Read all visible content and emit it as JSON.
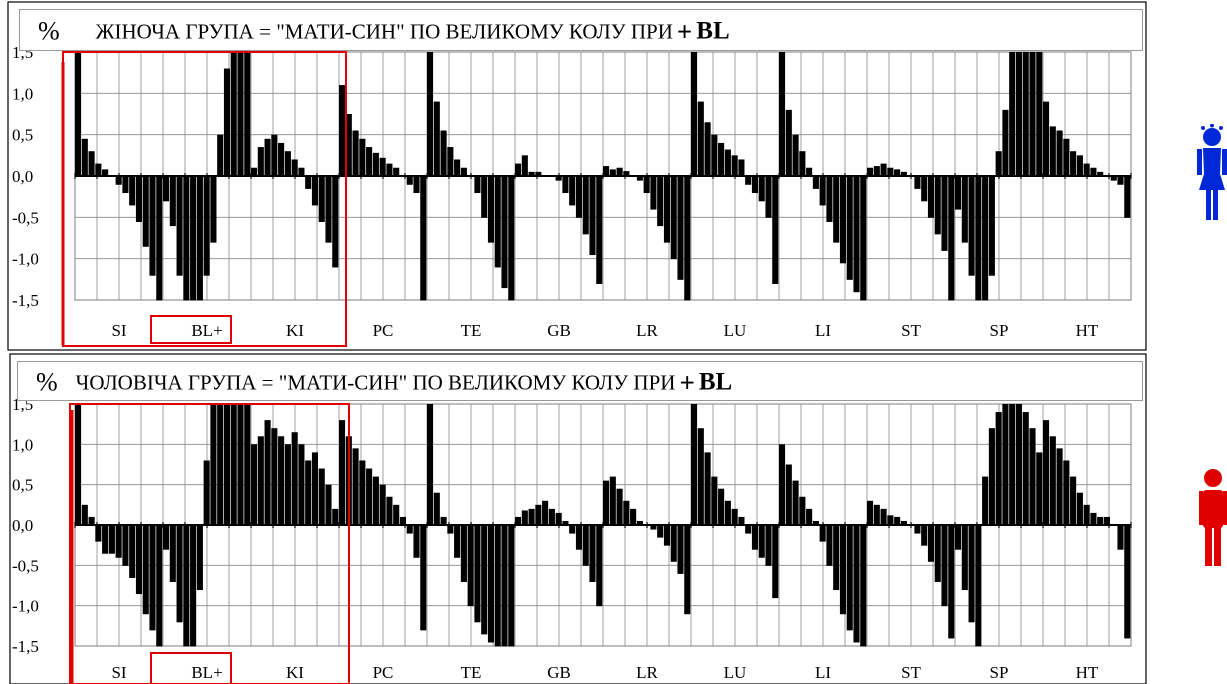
{
  "palette": {
    "bars": "#000000",
    "highlight": "#e00000",
    "female": "#0028d8",
    "male": "#e00000"
  },
  "female_title": {
    "percent": "%",
    "text": "ЖІНОЧА ГРУПА  = \"МАТИ-СИН\" ПО ВЕЛИКОМУ КОЛУ ПРИ",
    "plus": "+",
    "bl": "BL"
  },
  "male_title": {
    "percent": "%",
    "text": "ЧОЛОВІЧА ГРУПА  = \"МАТИ-СИН\" ПО ВЕЛИКОМУ КОЛУ  ПРИ",
    "plus": "+",
    "bl": "BL"
  },
  "icons": {
    "female": "woman-icon",
    "male": "man-icon"
  },
  "chart_data": [
    {
      "type": "bar",
      "title": "% ЖІНОЧА ГРУПА = \"МАТИ-СИН\" ПО ВЕЛИКОМУ КОЛУ ПРИ + BL",
      "categories": [
        "SI",
        "BL+",
        "KI",
        "PC",
        "TE",
        "GB",
        "LR",
        "LU",
        "LI",
        "ST",
        "SP",
        "HT"
      ],
      "yticks": [
        "1,5",
        "1,0",
        "0,5",
        "0,0",
        "-0,5",
        "-1,0",
        "-1,5"
      ],
      "ylim": [
        -1.5,
        1.5
      ],
      "grid": true,
      "highlight_box": [
        "SI",
        "BL+",
        "KI"
      ],
      "highlight_label": "BL+",
      "series": [
        {
          "values": [
            [
              1.5,
              0.45,
              0.3,
              0.15,
              0.08,
              0.0,
              -0.1,
              -0.2,
              -0.35,
              -0.55,
              -0.85,
              -1.2,
              -1.5
            ],
            [
              -0.3,
              -0.6,
              -1.2,
              -1.5,
              -1.5,
              -1.5,
              -1.2,
              -0.8,
              0.5,
              1.3,
              1.5,
              1.5,
              1.5
            ],
            [
              0.1,
              0.35,
              0.45,
              0.5,
              0.4,
              0.3,
              0.2,
              0.1,
              -0.15,
              -0.35,
              -0.55,
              -0.8,
              -1.1
            ],
            [
              1.1,
              0.75,
              0.55,
              0.45,
              0.35,
              0.28,
              0.22,
              0.15,
              0.1,
              0.0,
              -0.1,
              -0.2,
              -1.5
            ],
            [
              1.5,
              0.9,
              0.55,
              0.35,
              0.2,
              0.1,
              0.0,
              -0.2,
              -0.5,
              -0.8,
              -1.1,
              -1.35,
              -1.5
            ],
            [
              0.15,
              0.25,
              0.05,
              0.05,
              0.0,
              0.0,
              -0.05,
              -0.2,
              -0.35,
              -0.5,
              -0.7,
              -0.95,
              -1.3
            ],
            [
              0.12,
              0.08,
              0.1,
              0.06,
              0.0,
              -0.05,
              -0.2,
              -0.4,
              -0.6,
              -0.8,
              -1.0,
              -1.25,
              -1.5
            ],
            [
              1.5,
              0.9,
              0.65,
              0.5,
              0.4,
              0.32,
              0.25,
              0.2,
              -0.1,
              -0.2,
              -0.3,
              -0.5,
              -1.3
            ],
            [
              1.5,
              0.8,
              0.5,
              0.3,
              0.1,
              -0.15,
              -0.35,
              -0.55,
              -0.8,
              -1.05,
              -1.25,
              -1.4,
              -1.5
            ],
            [
              0.1,
              0.12,
              0.15,
              0.1,
              0.08,
              0.05,
              0.0,
              -0.15,
              -0.3,
              -0.5,
              -0.7,
              -0.9,
              -1.5
            ],
            [
              -0.4,
              -0.8,
              -1.2,
              -1.5,
              -1.5,
              -1.2,
              0.3,
              0.8,
              1.5,
              1.5,
              1.5,
              1.5,
              1.5
            ],
            [
              0.9,
              0.6,
              0.55,
              0.45,
              0.3,
              0.25,
              0.15,
              0.1,
              0.05,
              0.0,
              -0.05,
              -0.1,
              -0.5
            ]
          ]
        }
      ]
    },
    {
      "type": "bar",
      "title": "% ЧОЛОВІЧА ГРУПА = \"МАТИ-СИН\" ПО ВЕЛИКОМУ КОЛУ ПРИ + BL",
      "categories": [
        "SI",
        "BL+",
        "KI",
        "PC",
        "TE",
        "GB",
        "LR",
        "LU",
        "LI",
        "ST",
        "SP",
        "HT"
      ],
      "yticks": [
        "1,5",
        "1,0",
        "0,5",
        "0,0",
        "-0,5",
        "-1,0",
        "-1,5"
      ],
      "ylim": [
        -1.5,
        1.5
      ],
      "grid": true,
      "highlight_box": [
        "SI",
        "BL+",
        "KI"
      ],
      "highlight_label": "BL+",
      "series": [
        {
          "values": [
            [
              1.5,
              0.25,
              0.1,
              -0.2,
              -0.35,
              -0.35,
              -0.4,
              -0.5,
              -0.65,
              -0.85,
              -1.1,
              -1.3,
              -1.5
            ],
            [
              -0.3,
              -0.7,
              -1.2,
              -1.5,
              -1.5,
              -0.8,
              0.8,
              1.5,
              1.5,
              1.5,
              1.5,
              1.5,
              1.5
            ],
            [
              1.0,
              1.1,
              1.3,
              1.2,
              1.1,
              1.0,
              1.15,
              1.0,
              0.8,
              0.9,
              0.7,
              0.5,
              0.2
            ],
            [
              1.3,
              1.1,
              0.95,
              0.8,
              0.7,
              0.6,
              0.5,
              0.35,
              0.25,
              0.1,
              -0.1,
              -0.4,
              -1.3
            ],
            [
              1.5,
              0.4,
              0.1,
              -0.1,
              -0.4,
              -0.7,
              -1.0,
              -1.2,
              -1.35,
              -1.45,
              -1.5,
              -1.5,
              -1.5
            ],
            [
              0.1,
              0.18,
              0.2,
              0.25,
              0.3,
              0.2,
              0.15,
              0.05,
              -0.1,
              -0.3,
              -0.5,
              -0.7,
              -1.0
            ],
            [
              0.55,
              0.6,
              0.45,
              0.3,
              0.2,
              0.05,
              0.0,
              -0.05,
              -0.15,
              -0.25,
              -0.45,
              -0.6,
              -1.1
            ],
            [
              1.5,
              1.2,
              0.9,
              0.6,
              0.45,
              0.3,
              0.2,
              0.1,
              -0.1,
              -0.3,
              -0.4,
              -0.5,
              -0.9
            ],
            [
              1.0,
              0.75,
              0.55,
              0.35,
              0.2,
              0.05,
              -0.2,
              -0.5,
              -0.8,
              -1.1,
              -1.3,
              -1.45,
              -1.5
            ],
            [
              0.3,
              0.25,
              0.2,
              0.12,
              0.1,
              0.05,
              0.0,
              -0.1,
              -0.25,
              -0.45,
              -0.7,
              -1.0,
              -1.4
            ],
            [
              -0.3,
              -0.8,
              -1.2,
              -1.5,
              0.6,
              1.2,
              1.4,
              1.5,
              1.5,
              1.5,
              1.4,
              1.2,
              0.9
            ],
            [
              1.3,
              1.1,
              0.95,
              0.8,
              0.6,
              0.4,
              0.25,
              0.15,
              0.1,
              0.1,
              0.0,
              -0.3,
              -1.4
            ]
          ]
        }
      ]
    }
  ]
}
